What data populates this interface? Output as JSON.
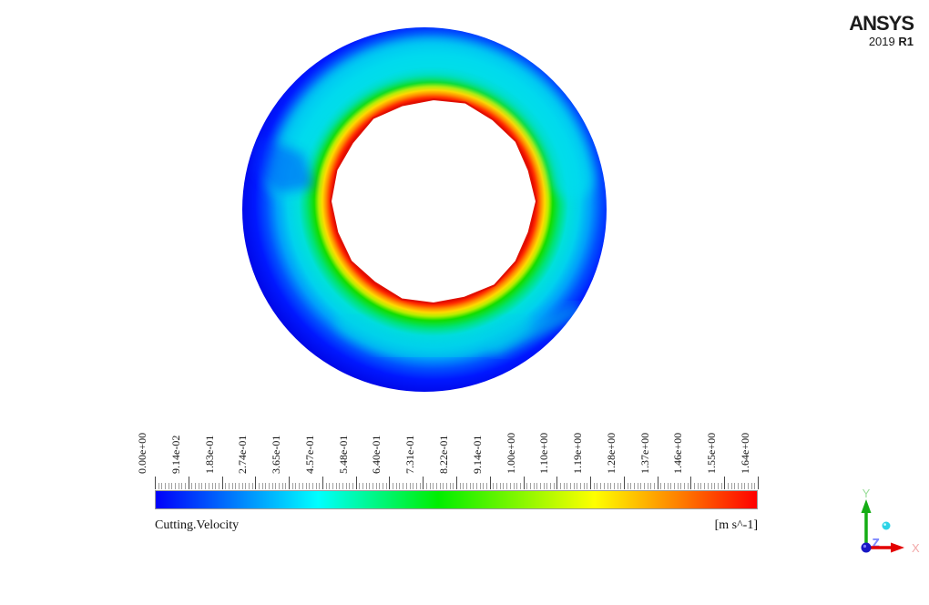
{
  "branding": {
    "name": "ANSYS",
    "version_year": "2019",
    "version_release": "R1"
  },
  "legend": {
    "title": "Cutting.Velocity",
    "unit": "[m s^-1]",
    "labels": [
      "0.00e+00",
      "9.14e-02",
      "1.83e-01",
      "2.74e-01",
      "3.65e-01",
      "4.57e-01",
      "5.48e-01",
      "6.40e-01",
      "7.31e-01",
      "8.22e-01",
      "9.14e-01",
      "1.00e+00",
      "1.10e+00",
      "1.19e+00",
      "1.28e+00",
      "1.37e+00",
      "1.46e+00",
      "1.55e+00",
      "1.64e+00"
    ],
    "minor_ticks_per_interval": 9,
    "colormap": [
      "#0000fa",
      "#00ffff",
      "#00ee00",
      "#ffff00",
      "#ff8000",
      "#ff0000"
    ],
    "colormap_stops": [
      0,
      0.27,
      0.47,
      0.73,
      0.87,
      1
    ]
  },
  "triad": {
    "x_label": "X",
    "y_label": "Y",
    "z_label": "Z",
    "x_label_color": "#f2a8a8",
    "y_label_color": "#9add9a",
    "z_label_color": "#7d88ff",
    "x_axis_color": "#e30000",
    "y_axis_color": "#14ad14",
    "origin_sphere_color": "#1717c4",
    "secondary_sphere_color": "#2cd3e6"
  },
  "contour": {
    "field_name": "Cutting.Velocity",
    "inner_boundary_color": "#ff0000",
    "outer_region_color": "#0000e0",
    "hole_color": "#ffffff"
  },
  "chart_data": {
    "type": "heatmap",
    "title": "Cutting.Velocity",
    "units": "m s^-1",
    "geometry": "annular cross-section (ring) with white circular hole",
    "colormap": [
      "blue",
      "cyan",
      "green",
      "yellow",
      "red"
    ],
    "scale_min": 0.0,
    "scale_max": 1.64,
    "scale_values": [
      0.0,
      0.0914,
      0.183,
      0.274,
      0.365,
      0.457,
      0.548,
      0.64,
      0.731,
      0.822,
      0.914,
      1.0,
      1.1,
      1.19,
      1.28,
      1.37,
      1.46,
      1.55,
      1.64
    ],
    "field_summary": "velocity ~1.64 m/s (red) at the inner circular wall, decreasing radially outward through yellow, green and cyan to ~0 m/s (blue) at the outer wall; upper half shows a broader cyan region, lower half mostly dark blue with a cyan streak near the bottom"
  }
}
